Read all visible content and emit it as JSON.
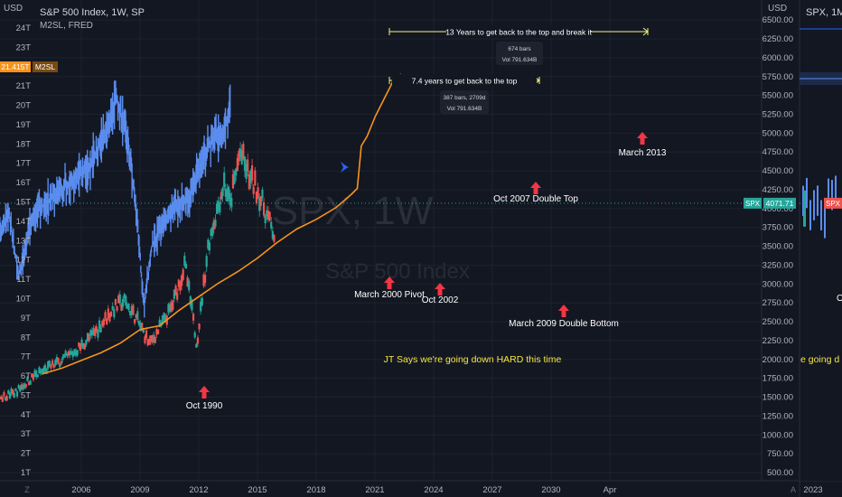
{
  "left_pane": {
    "unit_label": "USD",
    "symbol_title": "S&P 500 Index, 1W, SP",
    "indicator_title": "M2SL, FRED",
    "watermark_symbol": "SPX, 1W",
    "watermark_name": "S&P 500 Index",
    "m2_badge_value": "21.415T",
    "m2_badge_name": "M2SL",
    "left_axis_ticks": [
      "24T",
      "23T",
      "22T",
      "21T",
      "20T",
      "19T",
      "18T",
      "17T",
      "16T",
      "15T",
      "14T",
      "13T",
      "12T",
      "11T",
      "10T",
      "9T",
      "8T",
      "7T",
      "6T",
      "5T",
      "4T",
      "3T",
      "2T",
      "1T"
    ],
    "right_axis_ticks": [
      "6500.00",
      "6250.00",
      "6000.00",
      "5750.00",
      "5500.00",
      "5250.00",
      "5000.00",
      "4750.00",
      "4500.00",
      "4250.00",
      "4000.00",
      "3750.00",
      "3500.00",
      "3250.00",
      "3000.00",
      "2750.00",
      "2500.00",
      "2250.00",
      "2000.00",
      "1750.00",
      "1500.00",
      "1250.00",
      "1000.00",
      "750.00",
      "500.00"
    ],
    "x_axis_ticks": [
      "2006",
      "2009",
      "2012",
      "2015",
      "2018",
      "2021",
      "2024",
      "2027",
      "2030",
      "Apr"
    ],
    "spx_badge_name": "SPX",
    "spx_badge_value": "4071.71"
  },
  "right_pane": {
    "unit_label": "USD",
    "symbol_title": "SPX, 1M, SP",
    "x_axis_ticks": [
      "2023"
    ],
    "badge_name": "SPX",
    "partial_text_1": "O",
    "partial_text_2": "e going d"
  },
  "corner_glyphs": [
    "Z",
    "A"
  ],
  "colors": {
    "background": "#131722",
    "spx_line": "#5b8def",
    "candle_up": "#26a69a",
    "candle_down": "#ef5350",
    "m2_line": "#f7931a",
    "arrow_red": "#f23645",
    "arrow_blue": "#2962ff",
    "measure_line": "#f5f57a",
    "comment_text": "#f5e642"
  },
  "annotations": {
    "top_measure": "13 Years to get back to the top and break it",
    "top_measure_box_1": "674 bars",
    "top_measure_box_2": "Vol 791.634B",
    "mid_measure": "7.4 years to get back to the top",
    "mid_measure_box_1": "387 bars, 2709d",
    "mid_measure_box_2": "Vol 791.634B",
    "oct_1990": "Oct 1990",
    "march_2000": "March 2000 Pivot",
    "oct_2002": "Oct 2002",
    "oct_2007": "Oct 2007 Double Top",
    "march_2009": "March 2009 Double Bottom",
    "march_2013": "March 2013",
    "comment": "JT Says we're going down HARD this time"
  },
  "chart_data": {
    "type": "line",
    "title": "S&P 500 Index, 1W, SP",
    "series": [
      {
        "name": "SPX",
        "axis": "right",
        "note": "approximate weekly closes, overlaid (shifted) pattern",
        "x": [
          1990.8,
          1991.5,
          1992.5,
          1993.5,
          1994.5,
          1995.5,
          1996.5,
          1997.5,
          1998.5,
          1999.0,
          1999.5,
          2000.2,
          2000.8,
          2001.5,
          2001.9,
          2002.3,
          2002.8,
          2003.5,
          2004.5,
          2005.5,
          2006.5,
          2007.5,
          2007.8,
          2008.3,
          2008.8,
          2009.2,
          2009.6,
          2010.5,
          2011.5,
          2012.5,
          2013.2,
          2013.6
        ],
        "y": [
          1300,
          1700,
          2050,
          2400,
          2800,
          3300,
          3900,
          4500,
          5000,
          5400,
          4800,
          5100,
          4100,
          4450,
          3700,
          3950,
          3100,
          3900,
          4150,
          4350,
          4600,
          5150,
          5500,
          5000,
          4000,
          2700,
          3500,
          3950,
          4150,
          4850,
          5000,
          5300
        ]
      },
      {
        "name": "M2SL",
        "axis": "left",
        "unit": "T",
        "x": [
          2004.0,
          2005.0,
          2006.0,
          2007.0,
          2008.0,
          2009.0,
          2010.0,
          2011.0,
          2012.0,
          2013.0,
          2014.0,
          2015.0,
          2016.0,
          2017.0,
          2018.0,
          2019.0,
          2019.8,
          2020.1,
          2020.3,
          2020.6,
          2021.0,
          2021.5,
          2022.0,
          2022.3,
          2022.6
        ],
        "y": [
          6.1,
          6.4,
          6.8,
          7.2,
          7.7,
          8.4,
          8.6,
          9.4,
          10.1,
          10.8,
          11.4,
          12.1,
          12.9,
          13.6,
          14.1,
          14.7,
          15.4,
          15.7,
          17.9,
          18.4,
          19.4,
          20.4,
          21.4,
          21.6,
          21.4
        ]
      }
    ],
    "x_ticks": [
      "2006",
      "2009",
      "2012",
      "2015",
      "2018",
      "2021",
      "2024",
      "2027",
      "2030",
      "Apr"
    ],
    "ylim_left": [
      0.6,
      24.2
    ],
    "ylim_right": [
      450,
      6600
    ],
    "last_value": 4071.71
  }
}
